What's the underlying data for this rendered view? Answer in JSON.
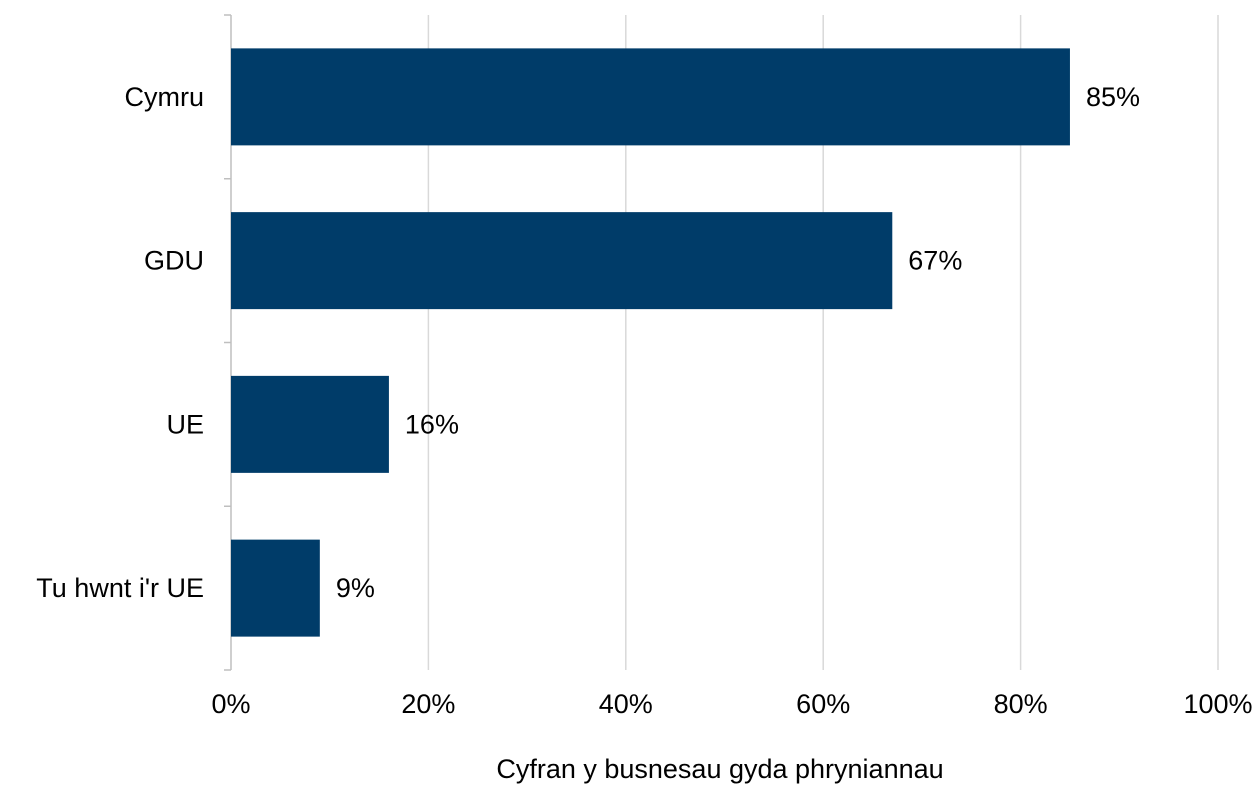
{
  "chart_data": {
    "type": "bar",
    "orientation": "horizontal",
    "categories": [
      "Cymru",
      "GDU",
      "UE",
      "Tu hwnt i'r UE"
    ],
    "values": [
      85,
      67,
      16,
      9
    ],
    "value_labels": [
      "85%",
      "67%",
      "16%",
      "9%"
    ],
    "xlabel": "Cyfran y busnesau gyda phryniannau",
    "ylabel": "",
    "xlim": [
      0,
      100
    ],
    "x_ticks": [
      0,
      20,
      40,
      60,
      80,
      100
    ],
    "x_tick_labels": [
      "0%",
      "20%",
      "40%",
      "60%",
      "80%",
      "100%"
    ],
    "grid": "vertical",
    "legend": "none",
    "colors": {
      "bar": "#003c69",
      "grid": "#d9d9d9",
      "axis": "#bfbfbf"
    }
  }
}
